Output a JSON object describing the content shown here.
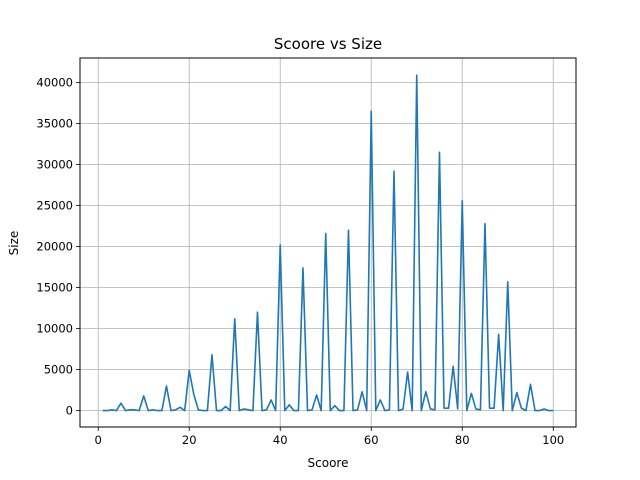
{
  "chart_data": {
    "type": "line",
    "title": "Scoore vs Size",
    "xlabel": "Scoore",
    "ylabel": "Size",
    "xlim": [
      -4,
      105
    ],
    "ylim": [
      -2000,
      43000
    ],
    "xticks": [
      0,
      20,
      40,
      60,
      80,
      100
    ],
    "yticks": [
      0,
      5000,
      10000,
      15000,
      20000,
      25000,
      30000,
      35000,
      40000
    ],
    "grid": true,
    "legend": "none",
    "line_color": "#1f77b4",
    "series": [
      {
        "x": [
          1,
          2,
          3,
          4,
          5,
          6,
          7,
          8,
          9,
          10,
          11,
          12,
          13,
          14,
          15,
          16,
          17,
          18,
          19,
          20,
          21,
          22,
          23,
          24,
          25,
          26,
          27,
          28,
          29,
          30,
          31,
          32,
          33,
          34,
          35,
          36,
          37,
          38,
          39,
          40,
          41,
          42,
          43,
          44,
          45,
          46,
          47,
          48,
          49,
          50,
          51,
          52,
          53,
          54,
          55,
          56,
          57,
          58,
          59,
          60,
          61,
          62,
          63,
          64,
          65,
          66,
          67,
          68,
          69,
          70,
          71,
          72,
          73,
          74,
          75,
          76,
          77,
          78,
          79,
          80,
          81,
          82,
          83,
          84,
          85,
          86,
          87,
          88,
          89,
          90,
          91,
          92,
          93,
          94,
          95,
          96,
          97,
          98,
          99,
          100
        ],
        "values": [
          0,
          0,
          100,
          0,
          900,
          0,
          100,
          100,
          0,
          1800,
          0,
          100,
          0,
          0,
          3000,
          0,
          100,
          400,
          0,
          4900,
          2000,
          100,
          0,
          0,
          6800,
          0,
          0,
          500,
          0,
          11200,
          0,
          200,
          100,
          0,
          12000,
          0,
          100,
          1300,
          0,
          20200,
          0,
          700,
          0,
          0,
          17400,
          0,
          100,
          1900,
          0,
          21600,
          0,
          600,
          0,
          0,
          22000,
          0,
          100,
          2300,
          0,
          36500,
          0,
          1300,
          0,
          100,
          29200,
          0,
          200,
          4700,
          0,
          40900,
          0,
          2300,
          200,
          100,
          31500,
          300,
          300,
          5400,
          200,
          25600,
          0,
          2100,
          200,
          100,
          22800,
          300,
          300,
          9300,
          0,
          15700,
          0,
          2200,
          300,
          0,
          3200,
          0,
          0,
          200,
          0,
          0
        ]
      }
    ]
  }
}
